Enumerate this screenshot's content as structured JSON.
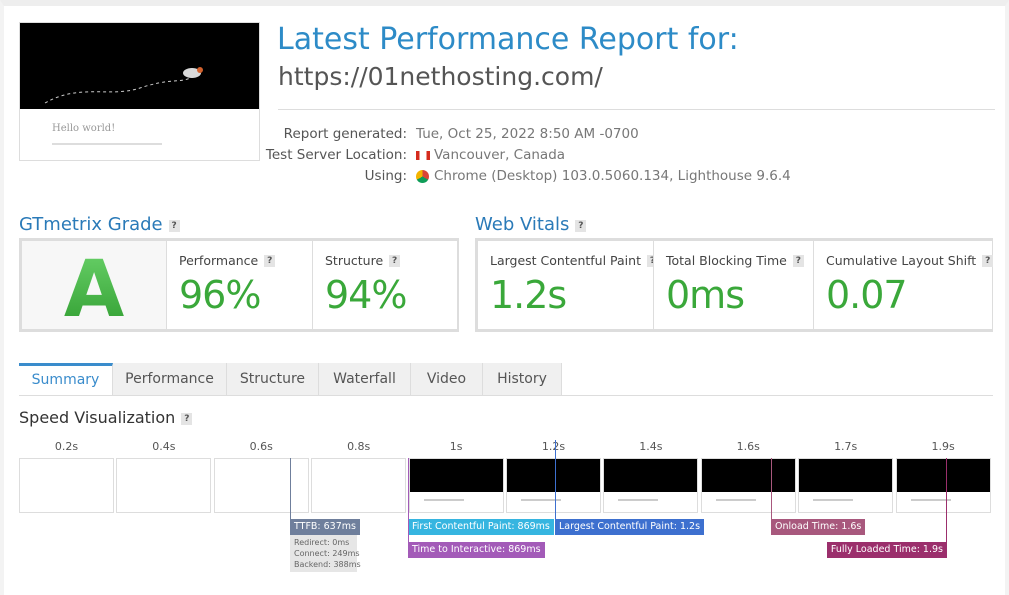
{
  "header": {
    "title": "Latest Performance Report for:",
    "url": "https://01nethosting.com/"
  },
  "thumbnail": {
    "heading": "Hello world!"
  },
  "report": {
    "rows": [
      {
        "label": "Report generated:",
        "value": "Tue, Oct 25, 2022 8:50 AM -0700"
      },
      {
        "label": "Test Server Location:",
        "value": "Vancouver, Canada"
      },
      {
        "label": "Using:",
        "value": "Chrome (Desktop) 103.0.5060.134, Lighthouse 9.6.4"
      }
    ]
  },
  "help": "?",
  "grade": {
    "title": "GTmetrix Grade",
    "grade": "A",
    "metrics": [
      {
        "label": "Performance",
        "value": "96%"
      },
      {
        "label": "Structure",
        "value": "94%"
      }
    ]
  },
  "web_vitals": {
    "title": "Web Vitals",
    "metrics": [
      {
        "label": "Largest Contentful Paint",
        "value": "1.2s"
      },
      {
        "label": "Total Blocking Time",
        "value": "0ms"
      },
      {
        "label": "Cumulative Layout Shift",
        "value": "0.07"
      }
    ]
  },
  "tabs": [
    "Summary",
    "Performance",
    "Structure",
    "Waterfall",
    "Video",
    "History"
  ],
  "speed": {
    "title": "Speed Visualization",
    "frames": [
      "0.2s",
      "0.4s",
      "0.6s",
      "0.8s",
      "1s",
      "1.2s",
      "1.4s",
      "1.6s",
      "1.7s",
      "1.9s"
    ],
    "markers": [
      {
        "label": "TTFB: 637ms",
        "color": "#6f7f9c",
        "details": [
          "Redirect: 0ms",
          "Connect: 249ms",
          "Backend: 388ms"
        ]
      },
      {
        "label": "First Contentful Paint: 869ms",
        "color": "#36b5e0"
      },
      {
        "label": "Time to Interactive: 869ms",
        "color": "#a35bb8"
      },
      {
        "label": "Largest Contentful Paint: 1.2s",
        "color": "#3d70cf"
      },
      {
        "label": "Onload Time: 1.6s",
        "color": "#a8587d"
      },
      {
        "label": "Fully Loaded Time: 1.9s",
        "color": "#9b2f6c"
      }
    ]
  }
}
